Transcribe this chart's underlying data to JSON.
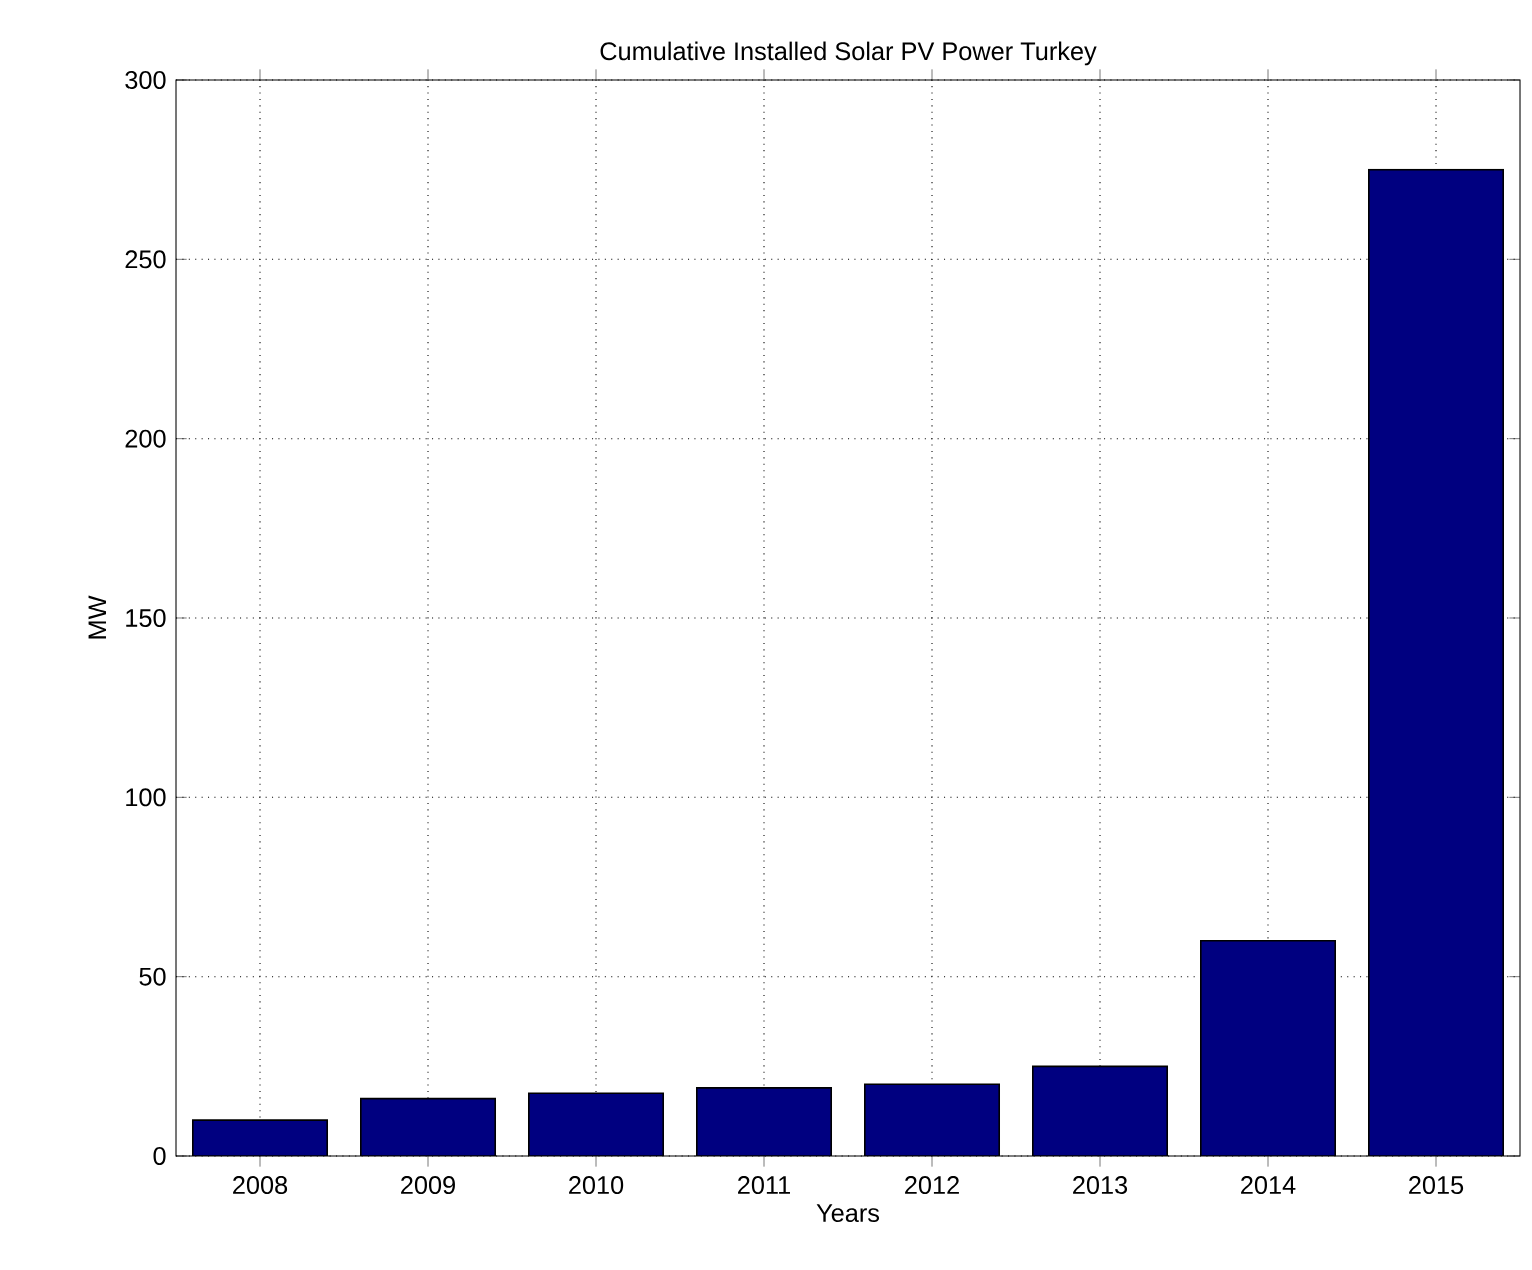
{
  "chart_data": {
    "type": "bar",
    "title": "Cumulative Installed Solar PV Power Turkey",
    "xlabel": "Years",
    "ylabel": "MW",
    "categories": [
      "2008",
      "2009",
      "2010",
      "2011",
      "2012",
      "2013",
      "2014",
      "2015"
    ],
    "values": [
      10,
      16,
      17.5,
      19,
      20,
      25,
      60,
      275
    ],
    "color": "#000080",
    "ylim": [
      0,
      300
    ],
    "yticks": [
      0,
      50,
      100,
      150,
      200,
      250,
      300
    ],
    "grid": true
  }
}
